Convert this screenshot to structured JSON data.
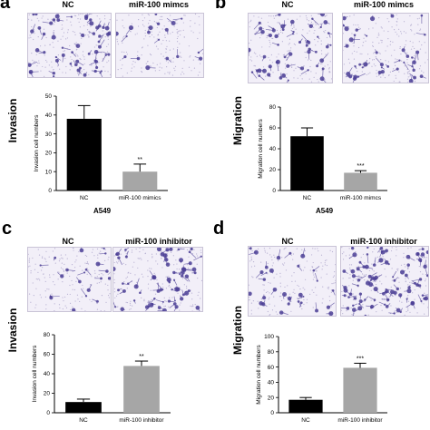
{
  "panels": [
    {
      "letter": "a",
      "side_label": "Invasion",
      "images": [
        {
          "label": "NC"
        },
        {
          "label": "miR-100 mimcs"
        }
      ],
      "caption": "A549"
    },
    {
      "letter": "b",
      "side_label": "Migration",
      "images": [
        {
          "label": "NC"
        },
        {
          "label": "miR-100 mimcs"
        }
      ],
      "caption": "A549"
    },
    {
      "letter": "c",
      "side_label": "Invasion",
      "images": [
        {
          "label": "NC"
        },
        {
          "label": "miR-100 inhibitor"
        }
      ],
      "caption": ""
    },
    {
      "letter": "d",
      "side_label": "Migration",
      "images": [
        {
          "label": "NC"
        },
        {
          "label": "miR-100 inhibitor"
        }
      ],
      "caption": ""
    }
  ],
  "colors": {
    "bar_control": "#000000",
    "bar_treatment": "#a6a6a6",
    "stain": "#4b3e95",
    "membrane": "#f2eff8"
  },
  "chart_data": [
    {
      "type": "bar",
      "categories": [
        "NC",
        "miR-100 mimics"
      ],
      "values": [
        38,
        10
      ],
      "errors": [
        7,
        4
      ],
      "significance": [
        "",
        "**"
      ],
      "ylabel": "Invasion cell numbers",
      "yticks": [
        0,
        10,
        20,
        30,
        40,
        50
      ],
      "ylim": [
        0,
        50
      ]
    },
    {
      "type": "bar",
      "categories": [
        "NC",
        "miR-100 mimcs"
      ],
      "values": [
        52,
        17
      ],
      "errors": [
        8,
        2
      ],
      "significance": [
        "",
        "***"
      ],
      "ylabel": "Migration cell numbers",
      "yticks": [
        0,
        20,
        40,
        60,
        80
      ],
      "ylim": [
        0,
        80
      ]
    },
    {
      "type": "bar",
      "categories": [
        "NC",
        "miR-100 inhibitor"
      ],
      "values": [
        11,
        48
      ],
      "errors": [
        3,
        5
      ],
      "significance": [
        "",
        "**"
      ],
      "ylabel": "Invasion cell numbers",
      "yticks": [
        0,
        20,
        40,
        60,
        80
      ],
      "ylim": [
        0,
        80
      ]
    },
    {
      "type": "bar",
      "categories": [
        "NC",
        "miR-100 inhibitor"
      ],
      "values": [
        17,
        59
      ],
      "errors": [
        3,
        6
      ],
      "significance": [
        "",
        "***"
      ],
      "ylabel": "Migration cell numbers",
      "yticks": [
        0,
        20,
        40,
        60,
        80,
        100
      ],
      "ylim": [
        0,
        100
      ]
    }
  ]
}
